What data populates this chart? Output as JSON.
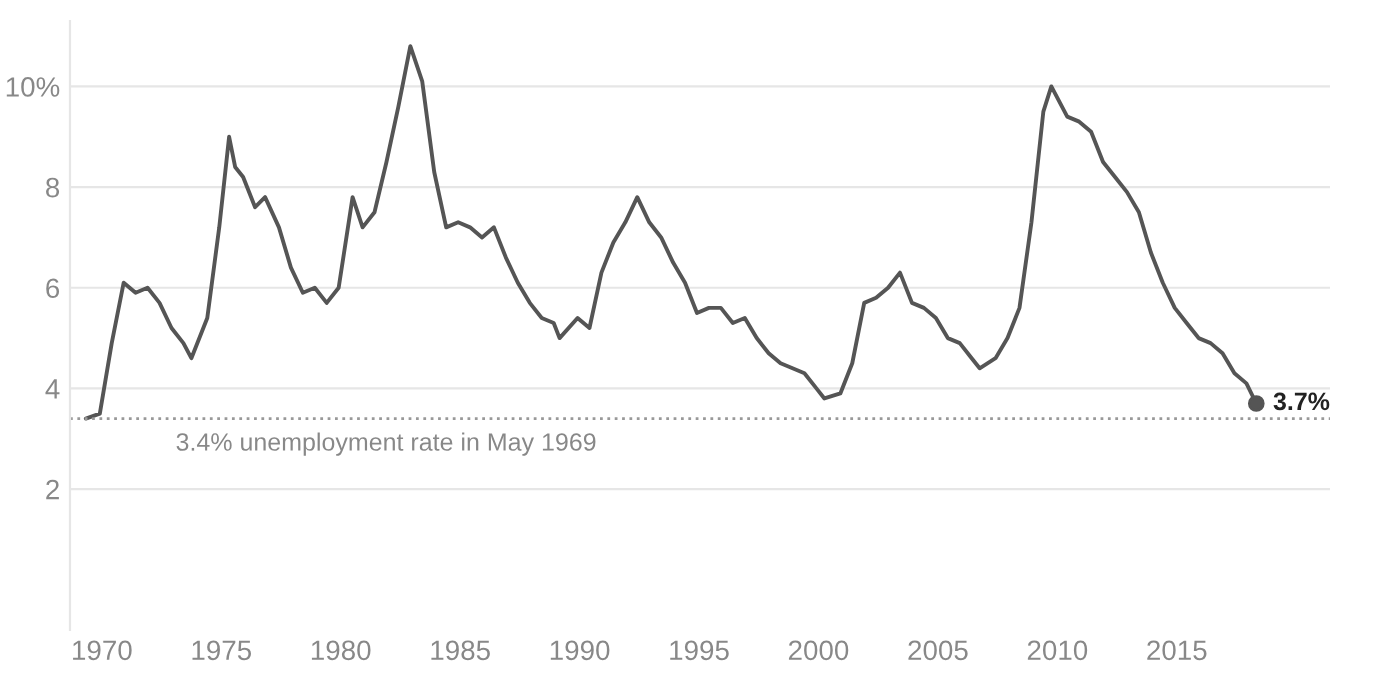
{
  "chart_data": {
    "type": "line",
    "x": [
      "1969-05",
      "1969-12",
      "1970-06",
      "1970-12",
      "1971-06",
      "1971-12",
      "1972-06",
      "1972-12",
      "1973-06",
      "1973-10",
      "1974-06",
      "1974-12",
      "1975-05",
      "1975-08",
      "1975-12",
      "1976-06",
      "1976-11",
      "1977-06",
      "1977-12",
      "1978-06",
      "1978-12",
      "1979-06",
      "1979-12",
      "1980-07",
      "1980-12",
      "1981-06",
      "1981-12",
      "1982-06",
      "1982-12",
      "1983-06",
      "1983-12",
      "1984-06",
      "1984-12",
      "1985-06",
      "1985-12",
      "1986-06",
      "1986-12",
      "1987-06",
      "1987-12",
      "1988-06",
      "1988-12",
      "1989-03",
      "1989-12",
      "1990-06",
      "1990-12",
      "1991-06",
      "1991-12",
      "1992-06",
      "1992-12",
      "1993-06",
      "1993-12",
      "1994-06",
      "1994-12",
      "1995-06",
      "1995-12",
      "1996-06",
      "1996-12",
      "1997-06",
      "1997-12",
      "1998-06",
      "1998-12",
      "1999-06",
      "1999-12",
      "2000-04",
      "2000-12",
      "2001-06",
      "2001-12",
      "2002-06",
      "2002-12",
      "2003-06",
      "2003-12",
      "2004-06",
      "2004-12",
      "2005-06",
      "2005-12",
      "2006-06",
      "2006-10",
      "2007-06",
      "2007-12",
      "2008-06",
      "2008-12",
      "2009-06",
      "2009-10",
      "2010-06",
      "2010-12",
      "2011-06",
      "2011-12",
      "2012-06",
      "2012-12",
      "2013-06",
      "2013-12",
      "2014-06",
      "2014-12",
      "2015-06",
      "2015-12",
      "2016-06",
      "2016-12",
      "2017-06",
      "2017-12",
      "2018-05"
    ],
    "series": [
      {
        "color": "#555555",
        "values": [
          3.4,
          3.5,
          4.9,
          6.1,
          5.9,
          6.0,
          5.7,
          5.2,
          4.9,
          4.6,
          5.4,
          7.2,
          9.0,
          8.4,
          8.2,
          7.6,
          7.8,
          7.2,
          6.4,
          5.9,
          6.0,
          5.7,
          6.0,
          7.8,
          7.2,
          7.5,
          8.5,
          9.6,
          10.8,
          10.1,
          8.3,
          7.2,
          7.3,
          7.2,
          7.0,
          7.2,
          6.6,
          6.1,
          5.7,
          5.4,
          5.3,
          5.0,
          5.4,
          5.2,
          6.3,
          6.9,
          7.3,
          7.8,
          7.3,
          7.0,
          6.5,
          6.1,
          5.5,
          5.6,
          5.6,
          5.3,
          5.4,
          5.0,
          4.7,
          4.5,
          4.4,
          4.3,
          4.0,
          3.8,
          3.9,
          4.5,
          5.7,
          5.8,
          6.0,
          6.3,
          5.7,
          5.6,
          5.4,
          5.0,
          4.9,
          4.6,
          4.4,
          4.6,
          5.0,
          5.6,
          7.3,
          9.5,
          10.0,
          9.4,
          9.3,
          9.1,
          8.5,
          8.2,
          7.9,
          7.5,
          6.7,
          6.1,
          5.6,
          5.3,
          5.0,
          4.9,
          4.7,
          4.3,
          4.1,
          3.7
        ]
      }
    ],
    "xlim": [
      "1968-09",
      "2021-06"
    ],
    "xticks": [
      "1970",
      "1975",
      "1980",
      "1985",
      "1990",
      "1995",
      "2000",
      "2005",
      "2010",
      "2015"
    ],
    "ylim": [
      -0.8,
      11.3
    ],
    "yticks": [
      2,
      4,
      6,
      8,
      {
        "value": 10,
        "label": "10%"
      }
    ],
    "grid": "y",
    "marker": "none",
    "line_style": "solid",
    "ref_lines": [
      {
        "axis": "y",
        "value": 3.4,
        "label": "3.4% unemployment rate in May 1969",
        "color": "#999999",
        "line_style": "dotted"
      }
    ],
    "annotations": [
      {
        "text": "3.7%",
        "x": "2018-05",
        "y": 3.7
      }
    ]
  }
}
